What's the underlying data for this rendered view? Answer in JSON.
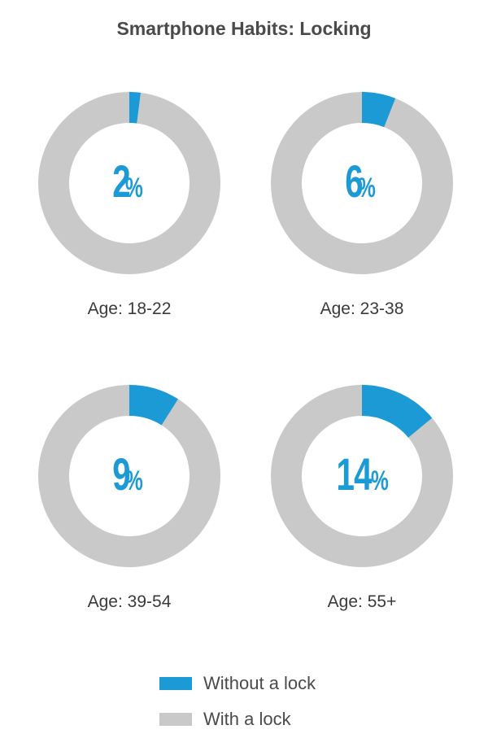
{
  "chart_data": {
    "type": "pie",
    "title": "Smartphone Habits: Locking",
    "series": [
      {
        "name": "Without a lock",
        "color": "#1c9ad6"
      },
      {
        "name": "With a lock",
        "color": "#c9c9c9"
      }
    ],
    "panels": [
      {
        "category": "Age: 18-22",
        "without_lock": 2,
        "with_lock": 98,
        "label": "2",
        "unit": "%"
      },
      {
        "category": "Age: 23-38",
        "without_lock": 6,
        "with_lock": 94,
        "label": "6",
        "unit": "%"
      },
      {
        "category": "Age: 39-54",
        "without_lock": 9,
        "with_lock": 91,
        "label": "9",
        "unit": "%"
      },
      {
        "category": "Age: 55+",
        "without_lock": 14,
        "with_lock": 86,
        "label": "14",
        "unit": "%"
      }
    ]
  }
}
